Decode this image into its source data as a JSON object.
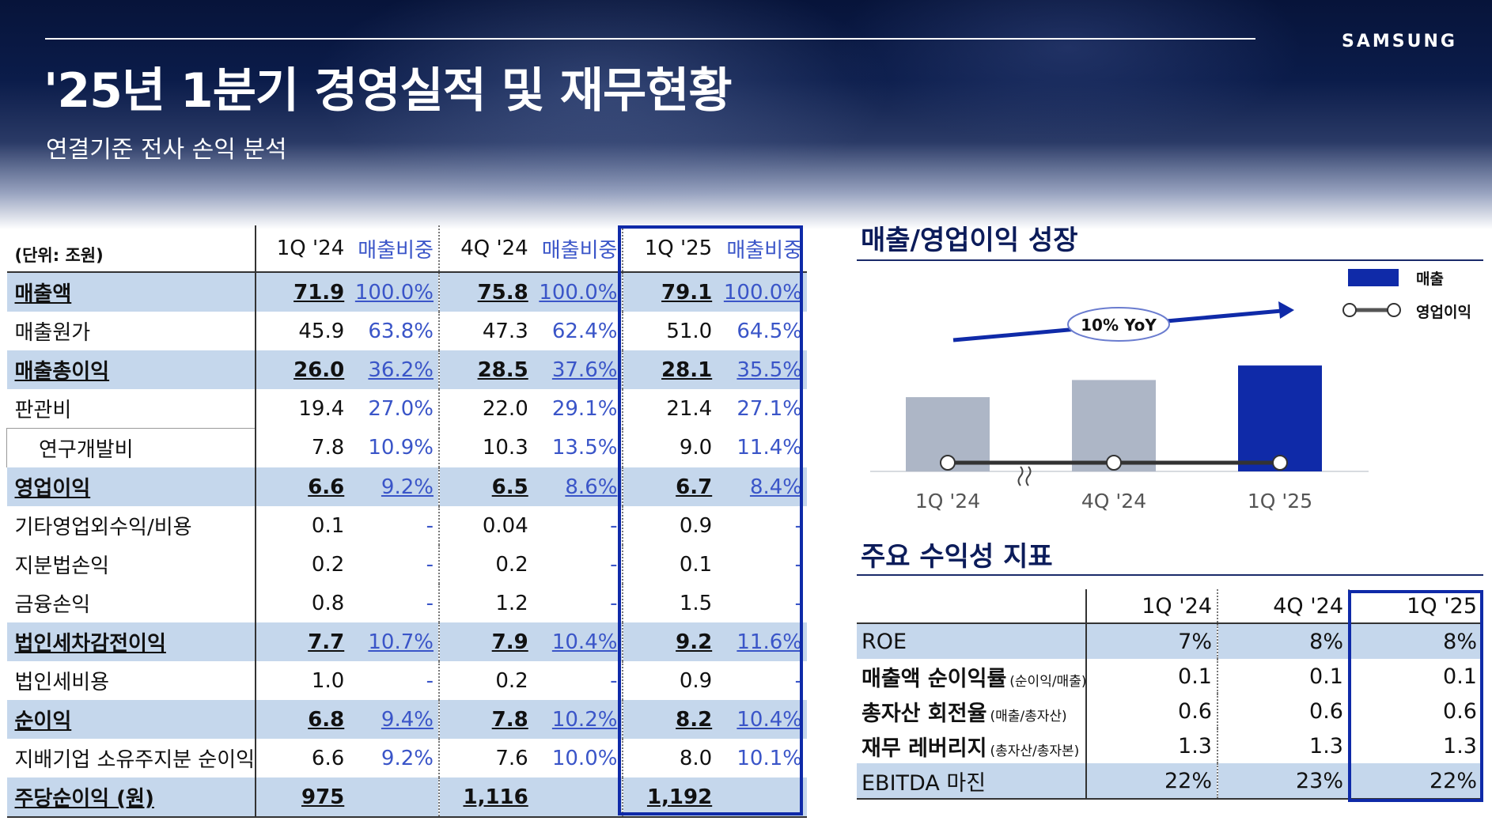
{
  "header": {
    "logo": "SAMSUNG",
    "title": "'25년 1분기 경영실적 및 재무현황",
    "subtitle": "연결기준 전사 손익 분석"
  },
  "income_table": {
    "unit_label": "(단위: 조원)",
    "columns": [
      "1Q '24",
      "매출비중",
      "4Q '24",
      "매출비중",
      "1Q '25",
      "매출비중"
    ],
    "rows": [
      {
        "label": "매출액",
        "values": [
          "71.9",
          "100.0%",
          "75.8",
          "100.0%",
          "79.1",
          "100.0%"
        ]
      },
      {
        "label": "매출원가",
        "values": [
          "45.9",
          "63.8%",
          "47.3",
          "62.4%",
          "51.0",
          "64.5%"
        ]
      },
      {
        "label": "매출총이익",
        "values": [
          "26.0",
          "36.2%",
          "28.5",
          "37.6%",
          "28.1",
          "35.5%"
        ]
      },
      {
        "label": "판관비",
        "values": [
          "19.4",
          "27.0%",
          "22.0",
          "29.1%",
          "21.4",
          "27.1%"
        ]
      },
      {
        "label": "연구개발비",
        "values": [
          "7.8",
          "10.9%",
          "10.3",
          "13.5%",
          "9.0",
          "11.4%"
        ]
      },
      {
        "label": "영업이익",
        "values": [
          "6.6",
          "9.2%",
          "6.5",
          "8.6%",
          "6.7",
          "8.4%"
        ]
      },
      {
        "label": "기타영업외수익/비용",
        "values": [
          "0.1",
          "-",
          "0.04",
          "-",
          "0.9",
          "-"
        ]
      },
      {
        "label": "지분법손익",
        "values": [
          "0.2",
          "-",
          "0.2",
          "-",
          "0.1",
          "-"
        ]
      },
      {
        "label": "금융손익",
        "values": [
          "0.8",
          "-",
          "1.2",
          "-",
          "1.5",
          "-"
        ]
      },
      {
        "label": "법인세차감전이익",
        "values": [
          "7.7",
          "10.7%",
          "7.9",
          "10.4%",
          "9.2",
          "11.6%"
        ]
      },
      {
        "label": "법인세비용",
        "values": [
          "1.0",
          "-",
          "0.2",
          "-",
          "0.9",
          "-"
        ]
      },
      {
        "label": "순이익",
        "values": [
          "6.8",
          "9.4%",
          "7.8",
          "10.2%",
          "8.2",
          "10.4%"
        ]
      },
      {
        "label": "지배기업 소유주지분 순이익",
        "values": [
          "6.6",
          "9.2%",
          "7.6",
          "10.0%",
          "8.0",
          "10.1%"
        ]
      },
      {
        "label": "주당순이익 (원)",
        "values": [
          "975",
          "",
          "1,116",
          "",
          "1,192",
          ""
        ]
      }
    ]
  },
  "growth_section": {
    "title": "매출/영업이익 성장",
    "legend": {
      "revenue": "매출",
      "op_income": "영업이익"
    },
    "yoy_label": "10% YoY",
    "categories": [
      "1Q '24",
      "4Q '24",
      "1Q '25"
    ],
    "colors": {
      "past_bar": "#adb6c6",
      "current_bar": "#0f2aa8",
      "line": "#333333",
      "arrow": "#0f2aa8"
    }
  },
  "chart_data": {
    "type": "bar",
    "categories": [
      "1Q '24",
      "4Q '24",
      "1Q '25"
    ],
    "series": [
      {
        "name": "매출",
        "values": [
          71.9,
          75.8,
          79.1
        ]
      },
      {
        "name": "영업이익",
        "values": [
          6.6,
          6.5,
          6.7
        ]
      }
    ],
    "annotations": [
      "10% YoY"
    ],
    "legend": "top-right"
  },
  "kpi_section": {
    "title": "주요 수익성 지표",
    "columns": [
      "1Q '24",
      "4Q '24",
      "1Q '25"
    ],
    "rows": [
      {
        "label": "ROE",
        "note": "",
        "values": [
          "7%",
          "8%",
          "8%"
        ]
      },
      {
        "label": "매출액 순이익률",
        "note": "(순이익/매출)",
        "values": [
          "0.1",
          "0.1",
          "0.1"
        ]
      },
      {
        "label": "총자산 회전율",
        "note": "(매출/총자산)",
        "values": [
          "0.6",
          "0.6",
          "0.6"
        ]
      },
      {
        "label": "재무 레버리지",
        "note": "(총자산/총자본)",
        "values": [
          "1.3",
          "1.3",
          "1.3"
        ]
      },
      {
        "label": "EBITDA 마진",
        "note": "",
        "values": [
          "22%",
          "23%",
          "22%"
        ]
      }
    ]
  }
}
